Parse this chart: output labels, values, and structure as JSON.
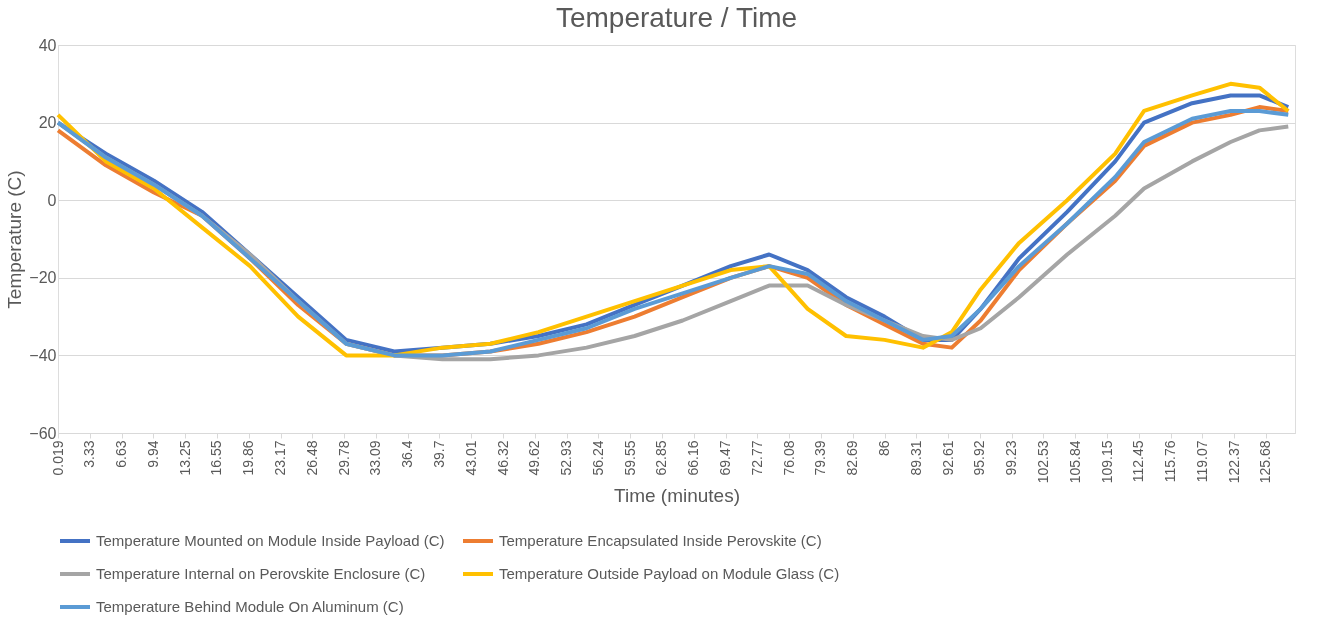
{
  "chart_data": {
    "type": "line",
    "title": "Temperature / Time",
    "xlabel": "Time (minutes)",
    "ylabel": "Temperature (C)",
    "x": [
      0.019,
      5,
      10,
      15,
      20,
      25,
      30,
      35,
      40,
      45,
      50,
      55,
      60,
      65,
      70,
      74,
      78,
      82,
      86,
      90,
      93,
      96,
      100,
      105,
      110,
      113,
      118,
      122,
      125,
      128
    ],
    "series": [
      {
        "name": "Temperature Mounted on Module Inside Payload (C)",
        "color": "#4472c4",
        "values": [
          20,
          12,
          5,
          -3,
          -14,
          -25,
          -36,
          -39,
          -38,
          -37,
          -35,
          -32,
          -27,
          -22,
          -17,
          -14,
          -18,
          -25,
          -30,
          -36,
          -36,
          -28,
          -15,
          -3,
          10,
          20,
          25,
          27,
          27,
          24
        ]
      },
      {
        "name": "Temperature Encapsulated Inside Perovskite (C)",
        "color": "#ed7d31",
        "values": [
          18,
          9,
          2,
          -4,
          -15,
          -27,
          -37,
          -40,
          -40,
          -39,
          -37,
          -34,
          -30,
          -25,
          -20,
          -17,
          -20,
          -27,
          -32,
          -37,
          -38,
          -31,
          -18,
          -6,
          5,
          14,
          20,
          22,
          24,
          23
        ]
      },
      {
        "name": "Temperature Internal on Perovskite Enclosure (C)",
        "color": "#a5a5a5",
        "values": [
          20,
          11,
          4,
          -4,
          -14,
          -26,
          -37,
          -40,
          -41,
          -41,
          -40,
          -38,
          -35,
          -31,
          -26,
          -22,
          -22,
          -27,
          -31,
          -35,
          -36,
          -33,
          -25,
          -14,
          -4,
          3,
          10,
          15,
          18,
          19
        ]
      },
      {
        "name": "Temperature Outside Payload on Module Glass (C)",
        "color": "#ffc000",
        "values": [
          22,
          10,
          3,
          -7,
          -17,
          -30,
          -40,
          -40,
          -38,
          -37,
          -34,
          -30,
          -26,
          -22,
          -18,
          -17,
          -28,
          -35,
          -36,
          -38,
          -34,
          -23,
          -11,
          0,
          12,
          23,
          27,
          30,
          29,
          23
        ]
      },
      {
        "name": "Temperature Behind Module On Aluminum (C)",
        "color": "#5b9bd5",
        "values": [
          20,
          11,
          4,
          -4,
          -15,
          -26,
          -37,
          -40,
          -40,
          -39,
          -36,
          -33,
          -28,
          -24,
          -20,
          -17,
          -19,
          -26,
          -31,
          -36,
          -35,
          -28,
          -17,
          -6,
          6,
          15,
          21,
          23,
          23,
          22
        ]
      }
    ],
    "xlim": [
      0.019,
      128.7
    ],
    "xticks": [
      0.019,
      3.33,
      6.63,
      9.94,
      13.25,
      16.55,
      19.86,
      23.17,
      26.48,
      29.78,
      33.09,
      36.4,
      39.7,
      43.01,
      46.32,
      49.62,
      52.93,
      56.24,
      59.55,
      62.85,
      66.16,
      69.47,
      72.77,
      76.08,
      79.39,
      82.69,
      86,
      89.31,
      92.61,
      95.92,
      99.23,
      102.53,
      105.84,
      109.15,
      112.45,
      115.76,
      119.07,
      122.37,
      125.68
    ],
    "ylim": [
      -60,
      40
    ],
    "yticks": [
      -60,
      -40,
      -20,
      0,
      20,
      40
    ],
    "grid": "y",
    "legend": "bottom",
    "line_style": "solid",
    "marker": "none"
  }
}
